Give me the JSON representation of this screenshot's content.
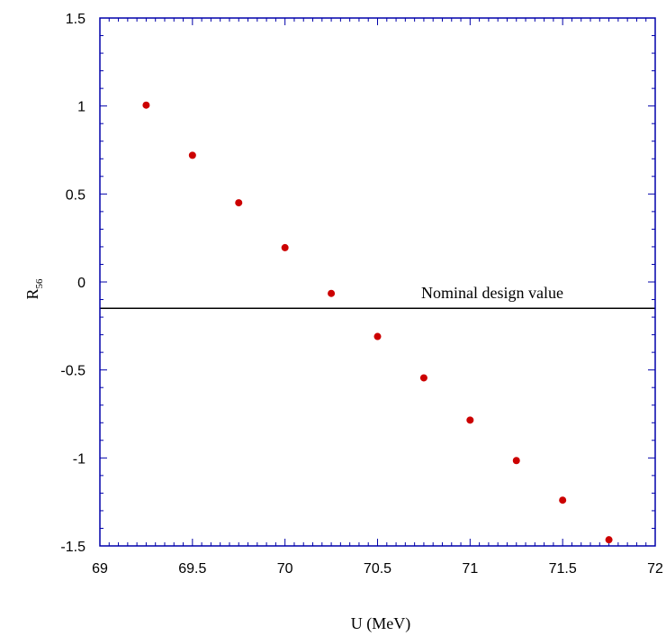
{
  "chart_data": {
    "type": "scatter",
    "title": "",
    "xlabel": "U (MeV)",
    "ylabel": "R",
    "ylabel_subscript": "56",
    "xlim": [
      69,
      72
    ],
    "ylim": [
      -1.5,
      1.5
    ],
    "x_ticks": [
      69,
      69.5,
      70,
      70.5,
      71,
      71.5,
      72
    ],
    "x_tick_labels": [
      "69",
      "69.5",
      "70",
      "70.5",
      "71",
      "71.5",
      "72"
    ],
    "y_ticks": [
      -1.5,
      -1,
      -0.5,
      0,
      0.5,
      1,
      1.5
    ],
    "y_tick_labels": [
      "-1.5",
      "-1",
      "-0.5",
      "0",
      "0.5",
      "1",
      "1.5"
    ],
    "grid": false,
    "series": [
      {
        "color": "#cc0000",
        "x": [
          69.25,
          69.5,
          69.75,
          70.0,
          70.25,
          70.5,
          70.75,
          71.0,
          71.25,
          71.5,
          71.75
        ],
        "y": [
          1.005,
          0.72,
          0.45,
          0.195,
          -0.065,
          -0.31,
          -0.545,
          -0.785,
          -1.015,
          -1.24,
          -1.465
        ]
      }
    ],
    "reference_line": {
      "y": -0.15,
      "label": "Nominal design value",
      "color": "#000000"
    },
    "frame_color": "#0000aa"
  }
}
